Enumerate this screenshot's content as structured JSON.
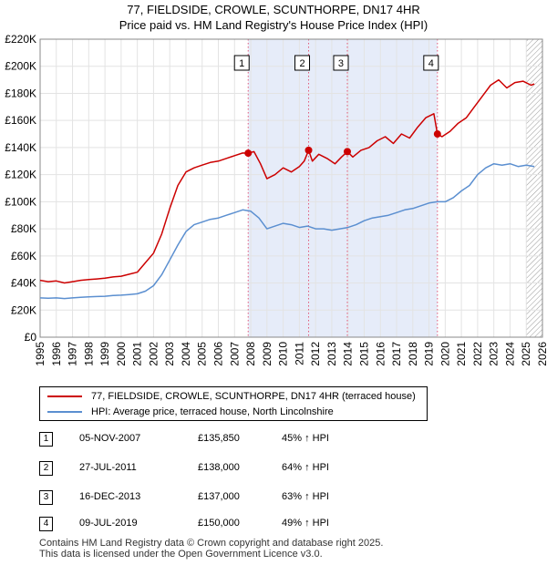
{
  "chart_data": {
    "type": "line",
    "title": "77, FIELDSIDE, CROWLE, SCUNTHORPE, DN17 4HR",
    "subtitle": "Price paid vs. HM Land Registry's House Price Index (HPI)",
    "xlabel": "",
    "ylabel": "",
    "xlim": [
      1995,
      2026
    ],
    "ylim": [
      0,
      220000
    ],
    "x_ticks": [
      "1995",
      "1996",
      "1997",
      "1998",
      "1999",
      "2000",
      "2001",
      "2002",
      "2003",
      "2004",
      "2005",
      "2006",
      "2007",
      "2008",
      "2009",
      "2010",
      "2011",
      "2012",
      "2013",
      "2014",
      "2015",
      "2016",
      "2017",
      "2018",
      "2019",
      "2020",
      "2021",
      "2022",
      "2023",
      "2024",
      "2025",
      "2026"
    ],
    "y_ticks": [
      {
        "value": 0,
        "label": "£0"
      },
      {
        "value": 20000,
        "label": "£20K"
      },
      {
        "value": 40000,
        "label": "£40K"
      },
      {
        "value": 60000,
        "label": "£60K"
      },
      {
        "value": 80000,
        "label": "£80K"
      },
      {
        "value": 100000,
        "label": "£100K"
      },
      {
        "value": 120000,
        "label": "£120K"
      },
      {
        "value": 140000,
        "label": "£140K"
      },
      {
        "value": 160000,
        "label": "£160K"
      },
      {
        "value": 180000,
        "label": "£180K"
      },
      {
        "value": 200000,
        "label": "£200K"
      },
      {
        "value": 220000,
        "label": "£220K"
      }
    ],
    "series": [
      {
        "name": "77, FIELDSIDE, CROWLE, SCUNTHORPE, DN17 4HR (terraced house)",
        "color": "#cc0000",
        "x": [
          1995.0,
          1995.5,
          1996.0,
          1996.5,
          1997.0,
          1997.5,
          1998.0,
          1998.5,
          1999.0,
          1999.5,
          2000.0,
          2000.5,
          2001.0,
          2001.5,
          2002.0,
          2002.5,
          2003.0,
          2003.5,
          2004.0,
          2004.5,
          2005.0,
          2005.5,
          2006.0,
          2006.5,
          2007.0,
          2007.5,
          2007.84,
          2008.2,
          2008.6,
          2009.0,
          2009.5,
          2010.0,
          2010.5,
          2011.0,
          2011.3,
          2011.57,
          2011.8,
          2012.2,
          2012.7,
          2013.2,
          2013.6,
          2013.96,
          2014.3,
          2014.8,
          2015.3,
          2015.8,
          2016.3,
          2016.8,
          2017.3,
          2017.8,
          2018.3,
          2018.8,
          2019.3,
          2019.52,
          2019.8,
          2020.3,
          2020.8,
          2021.3,
          2021.8,
          2022.3,
          2022.8,
          2023.3,
          2023.8,
          2024.3,
          2024.8,
          2025.3,
          2025.5
        ],
        "values": [
          42000,
          41000,
          41500,
          40000,
          41000,
          42000,
          42500,
          43000,
          43500,
          44500,
          45000,
          46500,
          48000,
          55000,
          62000,
          76000,
          95000,
          112000,
          122000,
          125000,
          127000,
          129000,
          130000,
          132000,
          134000,
          136000,
          135850,
          137000,
          128000,
          117000,
          120000,
          125000,
          122000,
          126000,
          130000,
          138000,
          130000,
          135000,
          132000,
          128000,
          133000,
          137000,
          133000,
          138000,
          140000,
          145000,
          148000,
          143000,
          150000,
          147000,
          155000,
          162000,
          165000,
          150000,
          148000,
          152000,
          158000,
          162000,
          170000,
          178000,
          186000,
          190000,
          184000,
          188000,
          189000,
          186000,
          187000
        ]
      },
      {
        "name": "HPI: Average price, terraced house, North Lincolnshire",
        "color": "#5b8fd0",
        "x": [
          1995.0,
          1995.5,
          1996.0,
          1996.5,
          1997.0,
          1997.5,
          1998.0,
          1998.5,
          1999.0,
          1999.5,
          2000.0,
          2000.5,
          2001.0,
          2001.5,
          2002.0,
          2002.5,
          2003.0,
          2003.5,
          2004.0,
          2004.5,
          2005.0,
          2005.5,
          2006.0,
          2006.5,
          2007.0,
          2007.5,
          2008.0,
          2008.5,
          2009.0,
          2009.5,
          2010.0,
          2010.5,
          2011.0,
          2011.5,
          2012.0,
          2012.5,
          2013.0,
          2013.5,
          2014.0,
          2014.5,
          2015.0,
          2015.5,
          2016.0,
          2016.5,
          2017.0,
          2017.5,
          2018.0,
          2018.5,
          2019.0,
          2019.5,
          2020.0,
          2020.5,
          2021.0,
          2021.5,
          2022.0,
          2022.5,
          2023.0,
          2023.5,
          2024.0,
          2024.5,
          2025.0,
          2025.5
        ],
        "values": [
          29000,
          28800,
          29000,
          28500,
          29000,
          29500,
          29800,
          30000,
          30200,
          30800,
          31000,
          31500,
          32000,
          34000,
          38000,
          46000,
          57000,
          68000,
          78000,
          83000,
          85000,
          87000,
          88000,
          90000,
          92000,
          94000,
          93000,
          88000,
          80000,
          82000,
          84000,
          83000,
          81000,
          82000,
          80000,
          80000,
          79000,
          80000,
          81000,
          83000,
          86000,
          88000,
          89000,
          90000,
          92000,
          94000,
          95000,
          97000,
          99000,
          100000,
          100000,
          103000,
          108000,
          112000,
          120000,
          125000,
          128000,
          127000,
          128000,
          126000,
          127000,
          126000
        ]
      }
    ],
    "transactions": [
      {
        "label": "1",
        "x": 2007.84,
        "value": 135850
      },
      {
        "label": "2",
        "x": 2011.57,
        "value": 138000
      },
      {
        "label": "3",
        "x": 2013.96,
        "value": 137000
      },
      {
        "label": "4",
        "x": 2019.52,
        "value": 150000
      }
    ]
  },
  "legend": {
    "price_label": "77, FIELDSIDE, CROWLE, SCUNTHORPE, DN17 4HR (terraced house)",
    "hpi_label": "HPI: Average price, terraced house, North Lincolnshire"
  },
  "table": {
    "rows": [
      {
        "num": "1",
        "date": "05-NOV-2007",
        "price": "£135,850",
        "pct": "45% ↑ HPI"
      },
      {
        "num": "2",
        "date": "27-JUL-2011",
        "price": "£138,000",
        "pct": "64% ↑ HPI"
      },
      {
        "num": "3",
        "date": "16-DEC-2013",
        "price": "£137,000",
        "pct": "63% ↑ HPI"
      },
      {
        "num": "4",
        "date": "09-JUL-2019",
        "price": "£150,000",
        "pct": "49% ↑ HPI"
      }
    ]
  },
  "footer": {
    "line1": "Contains HM Land Registry data © Crown copyright and database right 2025.",
    "line2": "This data is licensed under the Open Government Licence v3.0."
  }
}
